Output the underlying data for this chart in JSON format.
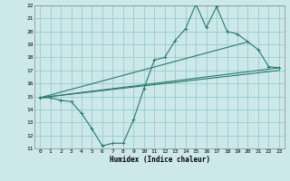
{
  "xlabel": "Humidex (Indice chaleur)",
  "bg_color": "#cce8e8",
  "grid_color": "#99cccc",
  "line_color": "#2a7a6e",
  "xlim": [
    -0.5,
    23.5
  ],
  "ylim": [
    11,
    22
  ],
  "xticks": [
    0,
    1,
    2,
    3,
    4,
    5,
    6,
    7,
    8,
    9,
    10,
    11,
    12,
    13,
    14,
    15,
    16,
    17,
    18,
    19,
    20,
    21,
    22,
    23
  ],
  "yticks": [
    11,
    12,
    13,
    14,
    15,
    16,
    17,
    18,
    19,
    20,
    21,
    22
  ],
  "series1_x": [
    0,
    1,
    2,
    3,
    4,
    5,
    6,
    7,
    8,
    9,
    10,
    11,
    12,
    13,
    14,
    15,
    16,
    17,
    18,
    19,
    20,
    21,
    22,
    23
  ],
  "series1_y": [
    14.9,
    14.9,
    14.7,
    14.6,
    13.7,
    12.5,
    11.2,
    11.4,
    11.4,
    13.2,
    15.6,
    17.8,
    18.0,
    19.3,
    20.2,
    22.1,
    20.3,
    21.9,
    20.0,
    19.8,
    19.2,
    18.6,
    17.3,
    17.2
  ],
  "series2_x": [
    0,
    23
  ],
  "series2_y": [
    14.9,
    17.2
  ],
  "series3_x": [
    0,
    20
  ],
  "series3_y": [
    14.9,
    19.2
  ],
  "series4_x": [
    0,
    23
  ],
  "series4_y": [
    14.9,
    17.0
  ]
}
